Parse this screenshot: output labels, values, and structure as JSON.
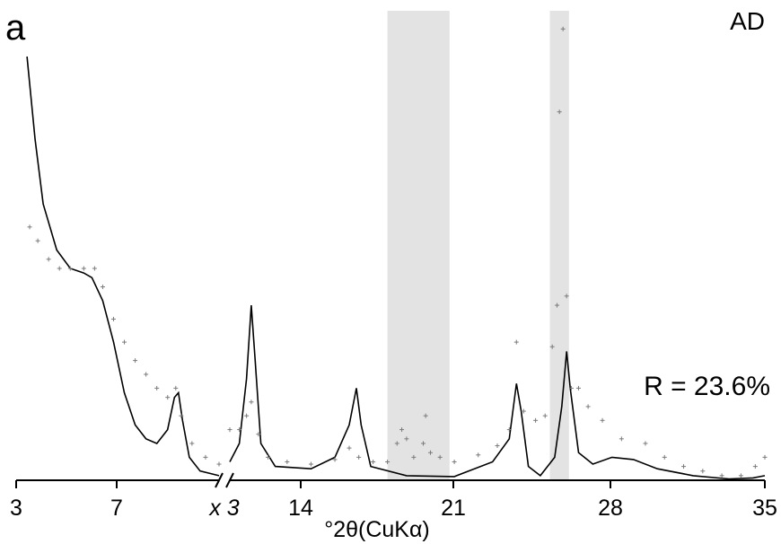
{
  "chart_data": {
    "type": "line",
    "panel_label": "a",
    "sample_label": "AD",
    "r_factor": "R = 23.6%",
    "xlabel": "°2θ(CuKα)",
    "break_marker": "x 3",
    "x_ticks": [
      "3",
      "7",
      "x 3",
      "14",
      "21",
      "28",
      "35"
    ],
    "segments": [
      {
        "xlim": [
          3,
          10.5
        ],
        "axis_scale": 1
      },
      {
        "xlim": [
          12.6,
          35
        ],
        "axis_scale": 3
      }
    ],
    "highlight_bands": [
      [
        19.2,
        21.8
      ],
      [
        26.0,
        26.8
      ]
    ],
    "series": [
      {
        "style": "line",
        "color": "#000000",
        "points": [
          [
            3.4,
            0.92
          ],
          [
            3.7,
            0.74
          ],
          [
            4,
            0.6
          ],
          [
            4.5,
            0.5
          ],
          [
            5,
            0.46
          ],
          [
            5.5,
            0.45
          ],
          [
            5.8,
            0.44
          ],
          [
            6.2,
            0.39
          ],
          [
            6.6,
            0.3
          ],
          [
            7,
            0.19
          ],
          [
            7.4,
            0.12
          ],
          [
            7.8,
            0.09
          ],
          [
            8.2,
            0.08
          ],
          [
            8.6,
            0.11
          ],
          [
            8.85,
            0.18
          ],
          [
            9,
            0.19
          ],
          [
            9.15,
            0.13
          ],
          [
            9.4,
            0.05
          ],
          [
            9.8,
            0.02
          ],
          [
            10.5,
            0.01
          ],
          [
            12.6,
            0.04
          ],
          [
            13.0,
            0.08
          ],
          [
            13.3,
            0.22
          ],
          [
            13.5,
            0.38
          ],
          [
            13.65,
            0.27
          ],
          [
            13.9,
            0.08
          ],
          [
            14.5,
            0.03
          ],
          [
            16,
            0.025
          ],
          [
            17,
            0.05
          ],
          [
            17.6,
            0.12
          ],
          [
            17.9,
            0.2
          ],
          [
            18.1,
            0.12
          ],
          [
            18.5,
            0.03
          ],
          [
            20,
            0.01
          ],
          [
            22,
            0.008
          ],
          [
            23.6,
            0.04
          ],
          [
            24.3,
            0.09
          ],
          [
            24.6,
            0.21
          ],
          [
            24.8,
            0.15
          ],
          [
            25.1,
            0.03
          ],
          [
            25.6,
            0.01
          ],
          [
            26.2,
            0.05
          ],
          [
            26.5,
            0.16
          ],
          [
            26.7,
            0.28
          ],
          [
            26.85,
            0.2
          ],
          [
            27.2,
            0.06
          ],
          [
            27.8,
            0.035
          ],
          [
            28.6,
            0.05
          ],
          [
            29.5,
            0.045
          ],
          [
            30.5,
            0.025
          ],
          [
            32,
            0.01
          ],
          [
            33.5,
            0.003
          ],
          [
            34.5,
            0.005
          ],
          [
            35,
            0.01
          ]
        ]
      },
      {
        "style": "markers",
        "color": "#7a7a7a",
        "points": [
          [
            3.5,
            0.55
          ],
          [
            3.8,
            0.52
          ],
          [
            4.2,
            0.48
          ],
          [
            4.6,
            0.46
          ],
          [
            5,
            0.46
          ],
          [
            5.5,
            0.46
          ],
          [
            5.9,
            0.46
          ],
          [
            6.2,
            0.42
          ],
          [
            6.6,
            0.35
          ],
          [
            7,
            0.3
          ],
          [
            7.4,
            0.26
          ],
          [
            7.8,
            0.23
          ],
          [
            8.2,
            0.2
          ],
          [
            8.6,
            0.18
          ],
          [
            8.9,
            0.2
          ],
          [
            9.1,
            0.14
          ],
          [
            9.5,
            0.08
          ],
          [
            10,
            0.05
          ],
          [
            10.5,
            0.035
          ],
          [
            12.6,
            0.11
          ],
          [
            13.0,
            0.11
          ],
          [
            13.3,
            0.14
          ],
          [
            13.5,
            0.17
          ],
          [
            13.8,
            0.1
          ],
          [
            14.2,
            0.05
          ],
          [
            15,
            0.04
          ],
          [
            16,
            0.035
          ],
          [
            17,
            0.045
          ],
          [
            17.6,
            0.07
          ],
          [
            18,
            0.05
          ],
          [
            18.6,
            0.04
          ],
          [
            19.2,
            0.04
          ],
          [
            19.6,
            0.08
          ],
          [
            19.8,
            0.11
          ],
          [
            20.0,
            0.09
          ],
          [
            20.3,
            0.05
          ],
          [
            20.7,
            0.08
          ],
          [
            20.8,
            0.14
          ],
          [
            21.0,
            0.06
          ],
          [
            21.4,
            0.05
          ],
          [
            22,
            0.04
          ],
          [
            23,
            0.055
          ],
          [
            23.8,
            0.075
          ],
          [
            24.3,
            0.11
          ],
          [
            24.6,
            0.3
          ],
          [
            24.9,
            0.15
          ],
          [
            25.4,
            0.13
          ],
          [
            25.8,
            0.14
          ],
          [
            26.1,
            0.29
          ],
          [
            26.3,
            0.38
          ],
          [
            26.4,
            0.8
          ],
          [
            26.55,
            0.98
          ],
          [
            26.7,
            0.4
          ],
          [
            26.9,
            0.2
          ],
          [
            27.2,
            0.2
          ],
          [
            27.6,
            0.16
          ],
          [
            28.2,
            0.13
          ],
          [
            29,
            0.09
          ],
          [
            30,
            0.08
          ],
          [
            30.8,
            0.05
          ],
          [
            31.6,
            0.03
          ],
          [
            32.4,
            0.02
          ],
          [
            33.2,
            0.01
          ],
          [
            34.0,
            0.01
          ],
          [
            34.6,
            0.03
          ],
          [
            35,
            0.05
          ]
        ]
      }
    ]
  }
}
